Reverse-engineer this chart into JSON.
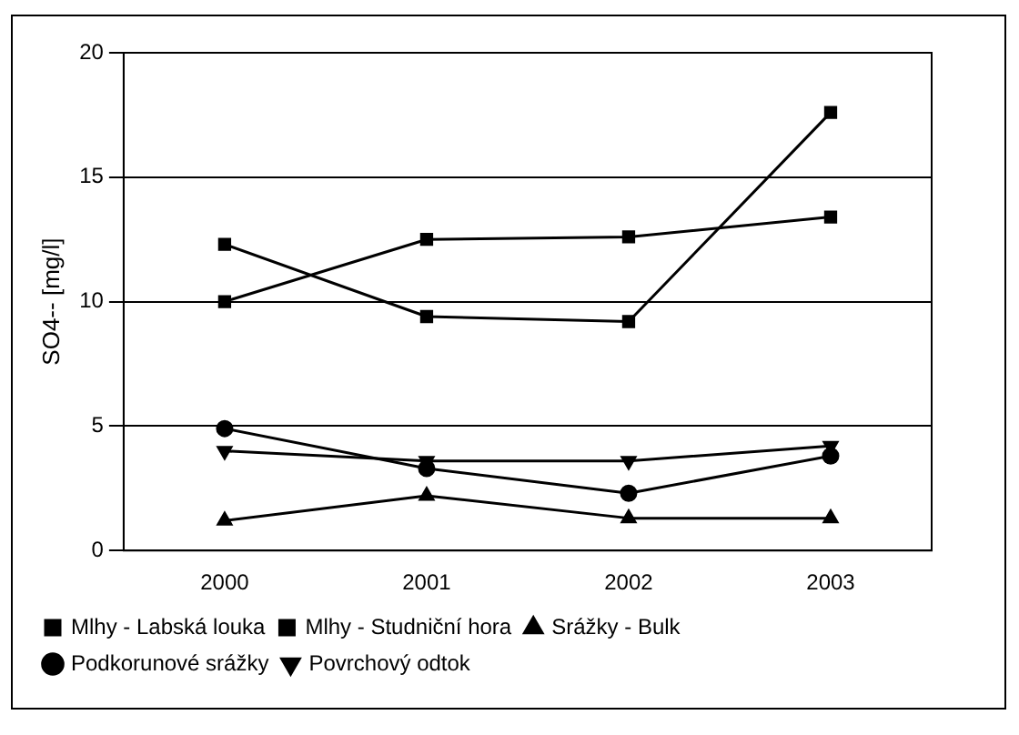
{
  "chart_data": {
    "type": "line",
    "ylabel": "SO4-- [mg/l]",
    "categories": [
      "2000",
      "2001",
      "2002",
      "2003"
    ],
    "series": [
      {
        "name": "Mlhy - Labská louka",
        "color": "#000000",
        "marker": "square",
        "values": [
          12.3,
          9.4,
          9.2,
          17.6
        ]
      },
      {
        "name": "Mlhy - Studniční hora",
        "color": "#000000",
        "marker": "square",
        "values": [
          10.0,
          12.5,
          12.6,
          13.4
        ]
      },
      {
        "name": "Srážky - Bulk",
        "color": "#000000",
        "marker": "triangle",
        "values": [
          1.2,
          2.2,
          1.3,
          1.3
        ]
      },
      {
        "name": "Podkorunové srážky",
        "color": "#000000",
        "marker": "circle",
        "values": [
          4.9,
          3.3,
          2.3,
          3.8
        ]
      },
      {
        "name": "Povrchový odtok",
        "color": "#000000",
        "marker": "triangle-down",
        "values": [
          4.0,
          3.6,
          3.6,
          4.2
        ]
      }
    ],
    "ylim": [
      0,
      20
    ],
    "yticks": [
      0,
      5,
      10,
      15,
      20
    ],
    "grid": "y",
    "legend": "bottom",
    "line_style": "solid"
  }
}
